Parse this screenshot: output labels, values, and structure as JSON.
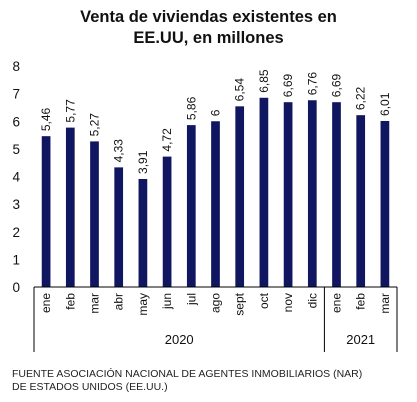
{
  "title_line1": "Venta de viviendas  existentes  en",
  "title_line2": "EE.UU, en millones",
  "source_line1": "FUENTE ASOCIACIÓN NACIONAL DE AGENTES INMOBILIARIOS  (NAR)",
  "source_line2": "DE ESTADOS UNIDOS (EE.UU.)",
  "colors": {
    "bar": "#10165f",
    "axis": "#000000",
    "text": "#111111"
  },
  "chart_data": {
    "type": "bar",
    "title": "Venta de viviendas existentes en EE.UU, en millones",
    "categories": [
      "ene",
      "feb",
      "mar",
      "abr",
      "may",
      "jun",
      "jul",
      "ago",
      "sept",
      "oct",
      "nov",
      "dic",
      "ene",
      "feb",
      "mar"
    ],
    "values": [
      5.46,
      5.77,
      5.27,
      4.33,
      3.91,
      4.72,
      5.86,
      6,
      6.54,
      6.85,
      6.69,
      6.76,
      6.69,
      6.22,
      6.01
    ],
    "value_labels": [
      "5,46",
      "5,77",
      "5,27",
      "4,33",
      "3,91",
      "4,72",
      "5,86",
      "6",
      "6,54",
      "6,85",
      "6,69",
      "6,76",
      "6,69",
      "6,22",
      "6,01"
    ],
    "groups": [
      {
        "label": "2020",
        "count": 12
      },
      {
        "label": "2021",
        "count": 3
      }
    ],
    "yticks": [
      "0",
      "1",
      "2",
      "3",
      "4",
      "5",
      "6",
      "7",
      "8"
    ],
    "ylim": [
      0,
      8
    ],
    "xlabel": "",
    "ylabel": "",
    "grid": false,
    "legend": "none"
  }
}
